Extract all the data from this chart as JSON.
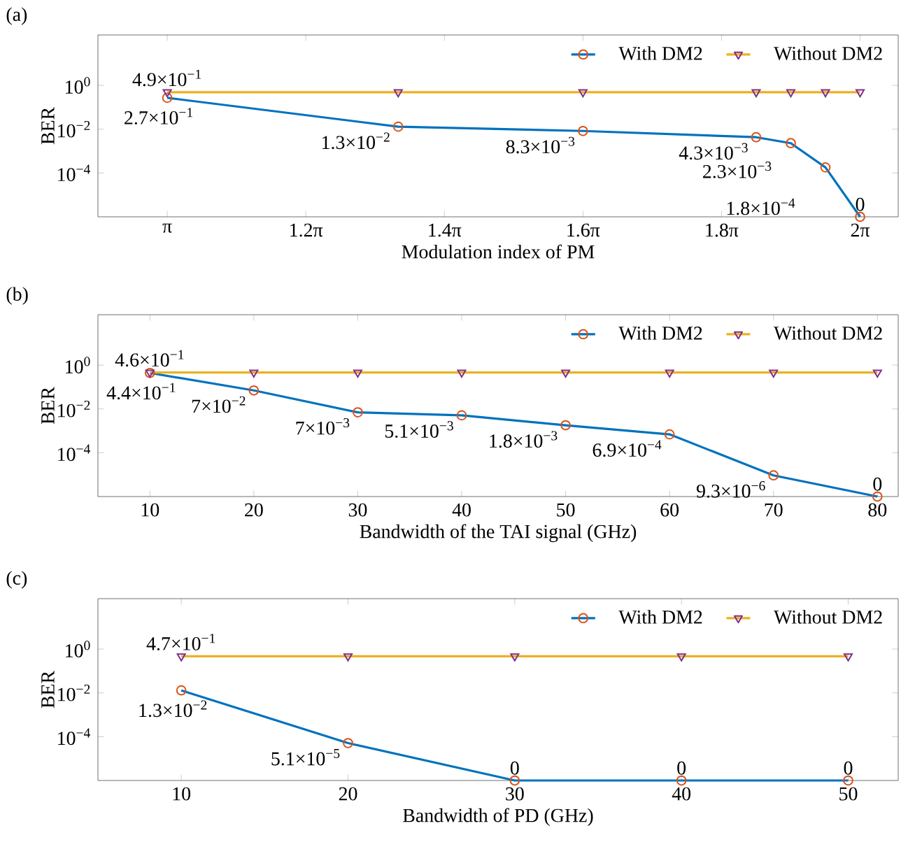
{
  "chart_data": [
    {
      "type": "line",
      "title": "(a)",
      "xlabel": "Modulation index of PM",
      "ylabel": "BER",
      "log": "y",
      "legend": "top right",
      "x": [
        3.1416,
        4.1888,
        5.0265,
        5.8119,
        5.969,
        6.1261,
        6.2832
      ],
      "xlim": [
        2.8274,
        6.456
      ],
      "xticks": [
        {
          "value": 3.1416,
          "label": "π"
        },
        {
          "value": 3.7699,
          "label": "1.2π"
        },
        {
          "value": 4.3982,
          "label": "1.4π"
        },
        {
          "value": 5.0265,
          "label": "1.6π"
        },
        {
          "value": 5.6549,
          "label": "1.8π"
        },
        {
          "value": 6.2832,
          "label": "2π"
        }
      ],
      "ylim": [
        1e-06,
        200
      ],
      "yticks": [
        {
          "value": 1,
          "label": "10$^{0}$"
        },
        {
          "value": 0.01,
          "label": "10$^{−2}$"
        },
        {
          "value": 0.0001,
          "label": "10$^{−4}$"
        }
      ],
      "series": [
        {
          "name": "With DM2",
          "color": "#0072bd",
          "colors": [
            "#d95319",
            "#d95319",
            "#d95319",
            "#d95319",
            "#d95319",
            "#d95319",
            "#d95319"
          ],
          "marker": "circle",
          "values": [
            0.27,
            0.013,
            0.0083,
            0.0043,
            0.0023,
            0.00018,
            1e-06
          ],
          "value_labels": [
            "2.7×10$^{−1}$",
            "1.3×10$^{−2}$",
            "8.3×10$^{−3}$",
            "4.3×10$^{−3}$",
            "2.3×10$^{−3}$",
            "1.8×10$^{−4}$",
            "0"
          ]
        },
        {
          "name": "Without DM2",
          "color": "#edb120",
          "colors": [
            "#7e2f8e",
            "#7e2f8e",
            "#7e2f8e",
            "#7e2f8e",
            "#7e2f8e",
            "#7e2f8e",
            "#7e2f8e"
          ],
          "marker": "triangle",
          "values": [
            0.49,
            0.49,
            0.49,
            0.49,
            0.49,
            0.49,
            0.49
          ],
          "value_labels": [
            "4.9×10$^{−1}$",
            null,
            null,
            null,
            null,
            null,
            null
          ]
        }
      ]
    },
    {
      "type": "line",
      "title": "(b)",
      "xlabel": "Bandwidth of the TAI signal (GHz)",
      "ylabel": "BER",
      "log": "y",
      "legend": "top right",
      "x": [
        10,
        20,
        30,
        40,
        50,
        60,
        70,
        80
      ],
      "xlim": [
        5,
        82
      ],
      "xticks": [
        10,
        20,
        30,
        40,
        50,
        60,
        70,
        80
      ],
      "ylim": [
        1e-06,
        200
      ],
      "yticks": [
        {
          "value": 1,
          "label": "10$^{0}$"
        },
        {
          "value": 0.01,
          "label": "10$^{−2}$"
        },
        {
          "value": 0.0001,
          "label": "10$^{−4}$"
        }
      ],
      "series": [
        {
          "name": "With DM2",
          "color": "#0072bd",
          "colors": [
            "#d95319",
            "#d95319",
            "#d95319",
            "#d95319",
            "#d95319",
            "#d95319",
            "#d95319",
            "#d95319"
          ],
          "marker": "circle",
          "values": [
            0.44,
            0.07,
            0.007,
            0.0051,
            0.0018,
            0.00069,
            9.3e-06,
            1e-06
          ],
          "value_labels": [
            "4.4×10$^{−1}$",
            "7×10$^{−2}$",
            "7×10$^{−3}$",
            "5.1×10$^{−3}$",
            "1.8×10$^{−3}$",
            "6.9×10$^{−4}$",
            "9.3×10$^{−6}$",
            "0"
          ]
        },
        {
          "name": "Without DM2",
          "color": "#edb120",
          "colors": [
            "#7e2f8e",
            "#7e2f8e",
            "#7e2f8e",
            "#7e2f8e",
            "#7e2f8e",
            "#7e2f8e",
            "#7e2f8e",
            "#7e2f8e"
          ],
          "marker": "triangle",
          "values": [
            0.46,
            0.46,
            0.46,
            0.46,
            0.46,
            0.46,
            0.46,
            0.46
          ],
          "value_labels": [
            "4.6×10$^{−1}$",
            null,
            null,
            null,
            null,
            null,
            null,
            null
          ]
        }
      ]
    },
    {
      "type": "line",
      "title": "(c)",
      "xlabel": "Bandwidth of PD (GHz)",
      "ylabel": "BER",
      "log": "y",
      "legend": "top right",
      "x": [
        10,
        20,
        30,
        40,
        50
      ],
      "xlim": [
        5,
        53
      ],
      "xticks": [
        10,
        20,
        30,
        40,
        50
      ],
      "ylim": [
        1e-06,
        200
      ],
      "yticks": [
        {
          "value": 1,
          "label": "10$^{0}$"
        },
        {
          "value": 0.01,
          "label": "10$^{−2}$"
        },
        {
          "value": 0.0001,
          "label": "10$^{−4}$"
        }
      ],
      "series": [
        {
          "name": "With DM2",
          "color": "#0072bd",
          "colors": [
            "#d95319",
            "#d95319",
            "#d95319",
            "#d95319",
            "#d95319"
          ],
          "marker": "circle",
          "values": [
            0.013,
            5.1e-05,
            1e-06,
            1e-06,
            1e-06
          ],
          "value_labels": [
            "1.3×10$^{−2}$",
            "5.1×10$^{−5}$",
            "0",
            "0",
            "0"
          ]
        },
        {
          "name": "Without DM2",
          "color": "#edb120",
          "colors": [
            "#7e2f8e",
            "#7e2f8e",
            "#7e2f8e",
            "#7e2f8e",
            "#7e2f8e"
          ],
          "marker": "triangle",
          "values": [
            0.47,
            0.47,
            0.47,
            0.47,
            0.47
          ],
          "value_labels": [
            "4.7×10$^{−1}$",
            null,
            null,
            null,
            null
          ]
        }
      ]
    }
  ]
}
